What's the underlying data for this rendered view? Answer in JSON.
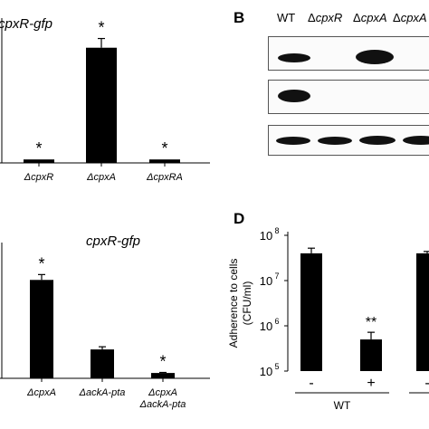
{
  "panels": {
    "A_top": {
      "title": "cpxR-gfp",
      "chart_data": {
        "type": "bar",
        "title": "cpxR-gfp",
        "categories": [
          "ΔcpxR",
          "ΔcpxA",
          "ΔcpxRA"
        ],
        "values": [
          0.03,
          1.0,
          0.03
        ],
        "errors": [
          0.0,
          0.08,
          0.0
        ],
        "annotations": [
          "*",
          "*",
          "*"
        ],
        "ylim": [
          0,
          1.1
        ]
      }
    },
    "A_bottom": {
      "title": "cpxR-gfp",
      "chart_data": {
        "type": "bar",
        "title": "cpxR-gfp",
        "categories": [
          "ΔcpxA",
          "ΔackA-pta",
          "ΔcpxA\nΔackA-pta"
        ],
        "values": [
          0.92,
          0.27,
          0.05
        ],
        "errors": [
          0.05,
          0.025,
          0.005
        ],
        "annotations": [
          "*",
          "",
          "*"
        ],
        "ylim": [
          0,
          1.1
        ]
      }
    },
    "B": {
      "label": "B",
      "lanes": [
        "WT",
        "ΔcpxR",
        "ΔcpxA",
        "ΔcpxA"
      ]
    },
    "D": {
      "label": "D",
      "chart_data": {
        "type": "bar",
        "ylabel": "Adherence to cells\n(CFU/ml)",
        "yscale": "log",
        "ylim": [
          100000,
          100000000
        ],
        "yticks": [
          "10^5",
          "10^6",
          "10^7",
          "10^8"
        ],
        "categories": [
          "-",
          "+",
          "-"
        ],
        "groups": [
          "WT"
        ],
        "values": [
          40000000,
          500000,
          40000000
        ],
        "errors_upper": [
          52000000,
          720000,
          44000000
        ],
        "annotations": [
          "",
          "**",
          ""
        ]
      }
    }
  }
}
